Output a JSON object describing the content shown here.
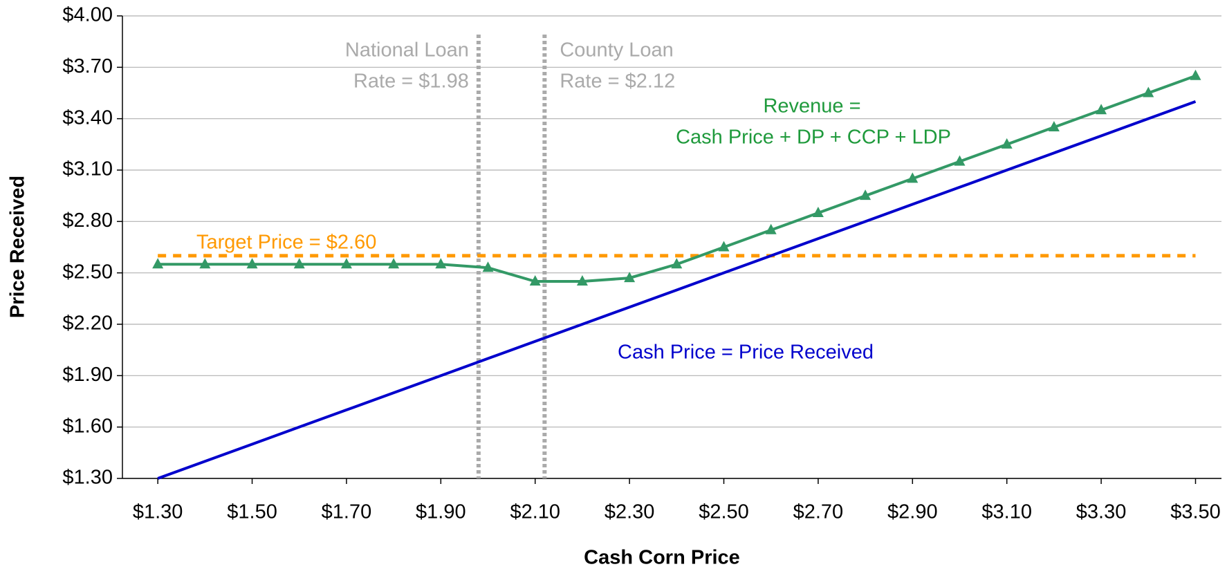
{
  "chart_data": {
    "type": "line",
    "x_label": "Cash Corn Price",
    "y_label": "Price Received",
    "x": [
      1.3,
      1.4,
      1.5,
      1.6,
      1.7,
      1.8,
      1.9,
      2.0,
      2.1,
      2.2,
      2.3,
      2.4,
      2.5,
      2.6,
      2.7,
      2.8,
      2.9,
      3.0,
      3.1,
      3.2,
      3.3,
      3.4,
      3.5
    ],
    "series": [
      {
        "color": "#339966",
        "marker": "triangle",
        "label": [
          "Revenue =",
          "Cash Price + DP + CCP + LDP"
        ],
        "label_color": "#1f9a3c",
        "values": [
          2.55,
          2.55,
          2.55,
          2.55,
          2.55,
          2.55,
          2.55,
          2.53,
          2.45,
          2.45,
          2.47,
          2.55,
          2.65,
          2.75,
          2.85,
          2.95,
          3.05,
          3.15,
          3.25,
          3.35,
          3.45,
          3.55,
          3.65
        ]
      },
      {
        "color": "#0000cc",
        "label": [
          "Cash Price = Price Received"
        ],
        "label_color": "#0000cc",
        "values": [
          1.3,
          1.4,
          1.5,
          1.6,
          1.7,
          1.8,
          1.9,
          2.0,
          2.1,
          2.2,
          2.3,
          2.4,
          2.5,
          2.6,
          2.7,
          2.8,
          2.9,
          3.0,
          3.1,
          3.2,
          3.3,
          3.4,
          3.5
        ]
      }
    ],
    "hlines": [
      {
        "value": 2.6,
        "color": "#ff9900",
        "label": [
          "Target Price = $2.60"
        ]
      }
    ],
    "vlines": [
      {
        "value": 1.98,
        "color": "#aaaaaa",
        "label": [
          "National Loan",
          "Rate = $1.98"
        ]
      },
      {
        "value": 2.12,
        "color": "#aaaaaa",
        "label": [
          "County Loan",
          "Rate = $2.12"
        ]
      }
    ],
    "xlim": [
      1.225,
      3.555
    ],
    "ylim": [
      1.3,
      4.0
    ],
    "xticks": [
      {
        "value": 1.3,
        "label": "$1.30"
      },
      {
        "value": 1.5,
        "label": "$1.50"
      },
      {
        "value": 1.7,
        "label": "$1.70"
      },
      {
        "value": 1.9,
        "label": "$1.90"
      },
      {
        "value": 2.1,
        "label": "$2.10"
      },
      {
        "value": 2.3,
        "label": "$2.30"
      },
      {
        "value": 2.5,
        "label": "$2.50"
      },
      {
        "value": 2.7,
        "label": "$2.70"
      },
      {
        "value": 2.9,
        "label": "$2.90"
      },
      {
        "value": 3.1,
        "label": "$3.10"
      },
      {
        "value": 3.3,
        "label": "$3.30"
      },
      {
        "value": 3.5,
        "label": "$3.50"
      }
    ],
    "yticks": [
      {
        "value": 1.3,
        "label": "$1.30"
      },
      {
        "value": 1.6,
        "label": "$1.60"
      },
      {
        "value": 1.9,
        "label": "$1.90"
      },
      {
        "value": 2.2,
        "label": "$2.20"
      },
      {
        "value": 2.5,
        "label": "$2.50"
      },
      {
        "value": 2.8,
        "label": "$2.80"
      },
      {
        "value": 3.1,
        "label": "$3.10"
      },
      {
        "value": 3.4,
        "label": "$3.40"
      },
      {
        "value": 3.7,
        "label": "$3.70"
      },
      {
        "value": 4.0,
        "label": "$4.00"
      }
    ],
    "grid": true
  }
}
